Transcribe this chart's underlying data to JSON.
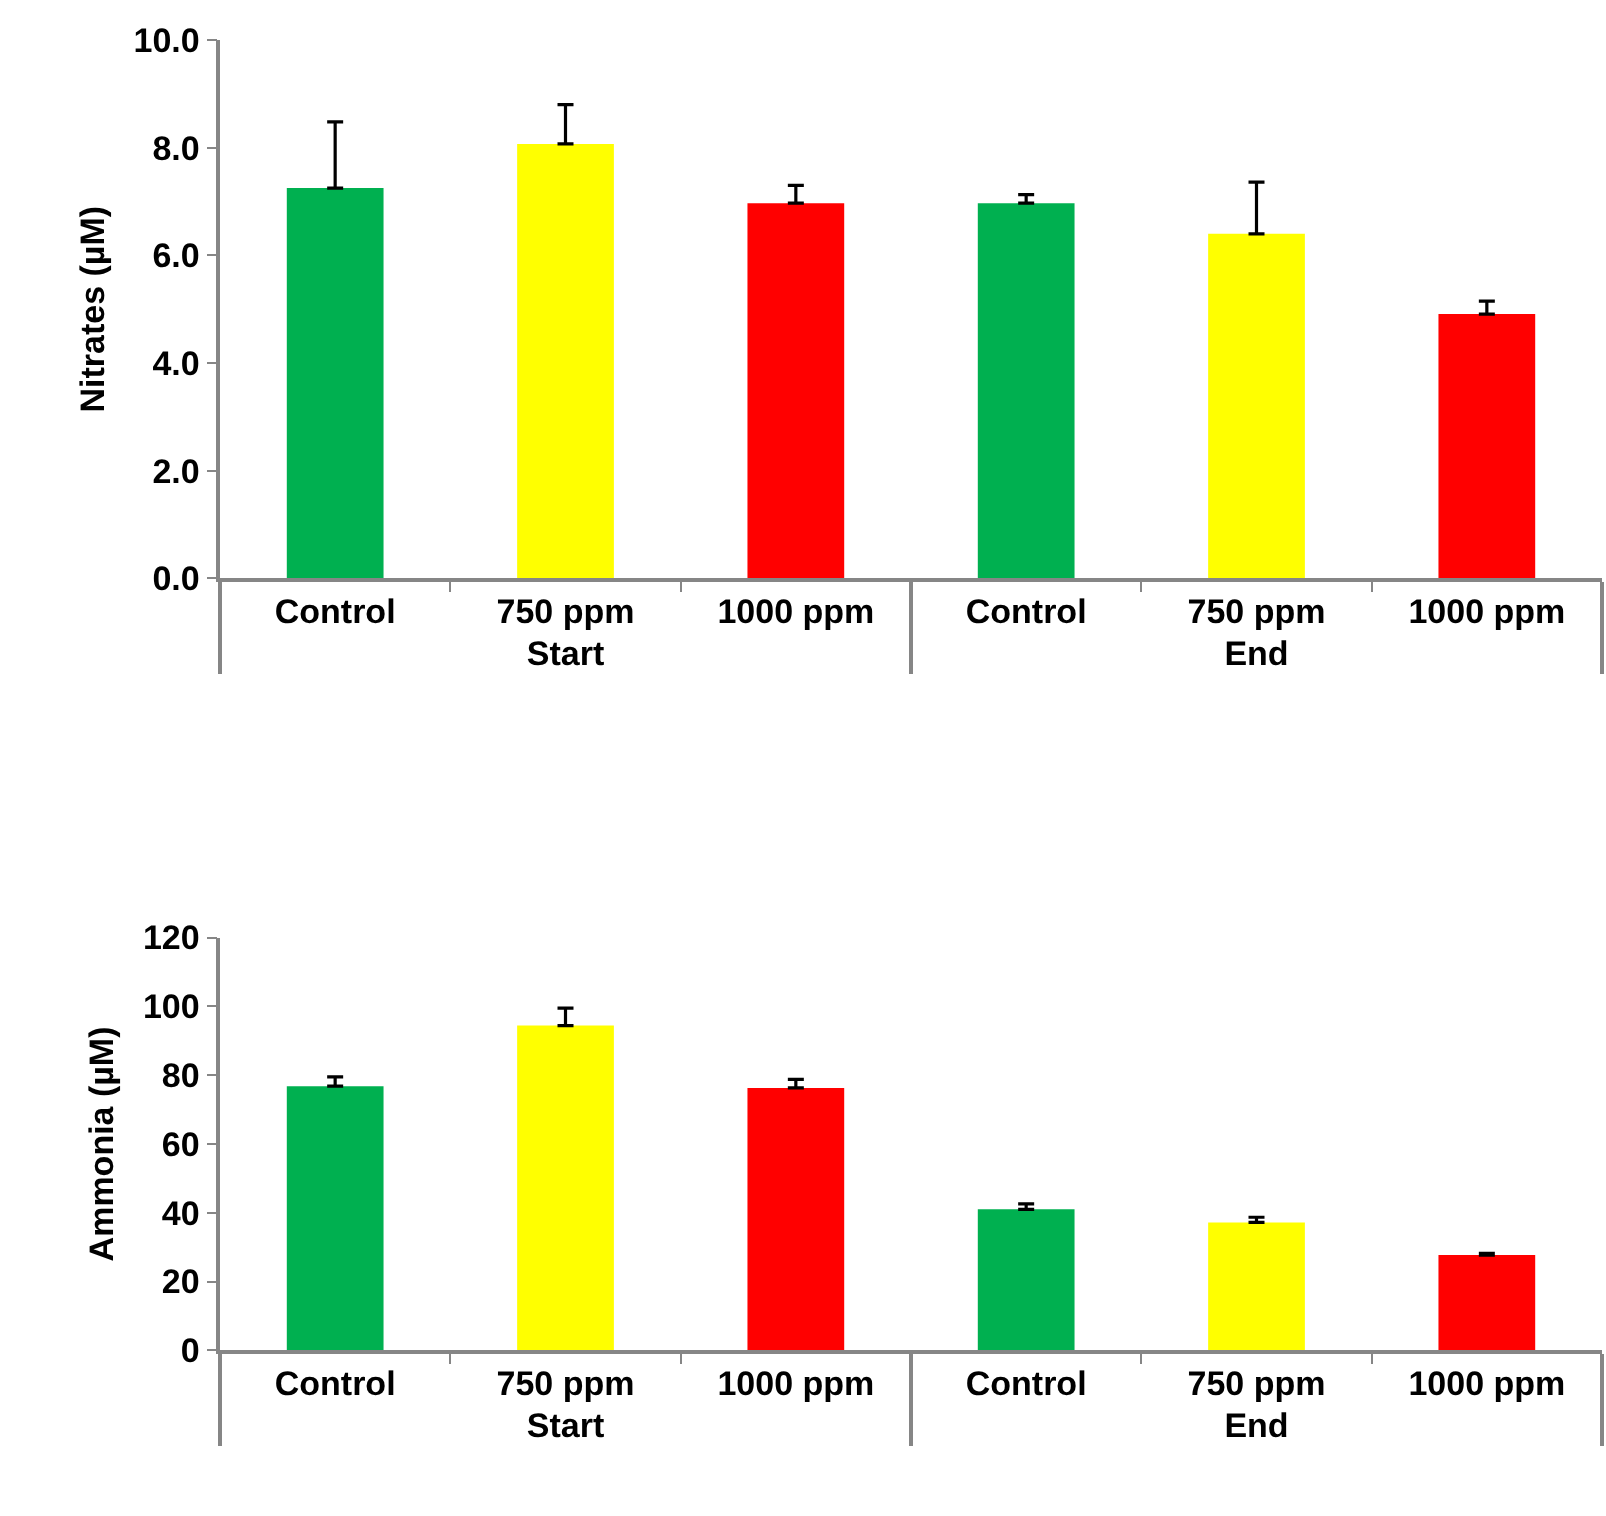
{
  "chart_data": [
    {
      "type": "bar",
      "ylabel": "Nitrates (µM)",
      "categories": [
        "Control",
        "750 ppm",
        "1000 ppm",
        "Control",
        "750 ppm",
        "1000 ppm"
      ],
      "values": [
        7.25,
        8.07,
        6.97,
        6.97,
        6.4,
        4.91
      ],
      "colors": [
        "#00b050",
        "#ffff00",
        "#ff0000",
        "#00b050",
        "#ffff00",
        "#ff0000"
      ],
      "errors": [
        [
          7.25,
          8.48
        ],
        [
          8.07,
          8.8
        ],
        [
          6.97,
          7.3
        ],
        [
          6.97,
          7.13
        ],
        [
          6.4,
          7.36
        ],
        [
          4.91,
          5.15
        ]
      ],
      "ylim": [
        0,
        10
      ],
      "yticks": [
        {
          "value": 0,
          "label": "0.0"
        },
        {
          "value": 2,
          "label": "2.0"
        },
        {
          "value": 4,
          "label": "4.0"
        },
        {
          "value": 6,
          "label": "6.0"
        },
        {
          "value": 8,
          "label": "8.0"
        },
        {
          "value": 10,
          "label": "10.0"
        }
      ],
      "annotations": [
        "Start",
        "End"
      ]
    },
    {
      "type": "bar",
      "ylabel": "Ammonia (µM)",
      "categories": [
        "Control",
        "750 ppm",
        "1000 ppm",
        "Control",
        "750 ppm",
        "1000 ppm"
      ],
      "values": [
        76.8,
        94.4,
        76.3,
        41.0,
        37.2,
        27.7
      ],
      "colors": [
        "#00b050",
        "#ffff00",
        "#ff0000",
        "#00b050",
        "#ffff00",
        "#ff0000"
      ],
      "errors": [
        [
          76.8,
          79.5
        ],
        [
          94.4,
          99.5
        ],
        [
          76.3,
          78.8
        ],
        [
          41.0,
          42.6
        ],
        [
          37.2,
          38.7
        ],
        [
          27.7,
          28.2
        ]
      ],
      "ylim": [
        0,
        120
      ],
      "yticks": [
        0,
        20,
        40,
        60,
        80,
        100,
        120
      ],
      "annotations": [
        "Start",
        "End"
      ]
    }
  ]
}
